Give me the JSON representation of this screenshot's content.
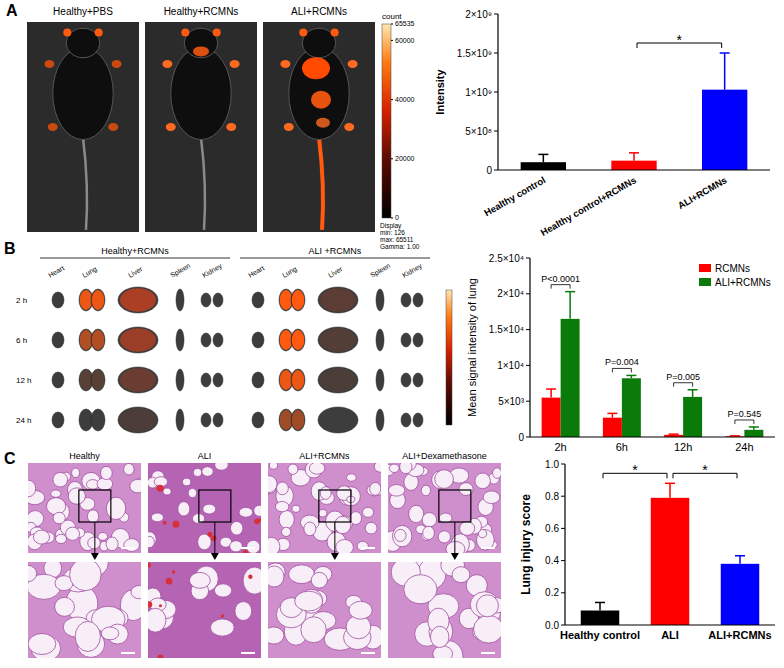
{
  "figure": {
    "panel_labels": [
      "A",
      "B",
      "C"
    ],
    "imaging": {
      "titles": [
        "Healthy+PBS",
        "Healthy+RCMNs",
        "ALI+RCMNs"
      ],
      "colorbar": {
        "title": "count",
        "range": [
          0,
          65535
        ],
        "ticks": [
          0,
          20000,
          40000,
          60000,
          65535
        ],
        "display": [
          "Display",
          "min: 126",
          "max: 65511",
          "Gamma: 1.00"
        ]
      }
    },
    "organs": {
      "groups": [
        "Healthy+RCMNs",
        "ALI +RCMNs"
      ],
      "organ_names": [
        "Heart",
        "Lung",
        "Liver",
        "Spleen",
        "Kidney"
      ],
      "times": [
        "2 h",
        "6 h",
        "12 h",
        "24 h"
      ]
    },
    "histology": {
      "titles": [
        "Healthy",
        "ALI",
        "ALI+RCMNs",
        "ALI+Dexamethasone"
      ]
    }
  },
  "chart_data": [
    {
      "type": "bar",
      "ylabel": "Intensity",
      "categories": [
        "Healthy control",
        "Healthy control+RCMNs",
        "ALI+RCMNs"
      ],
      "values": [
        100000000,
        120000000,
        1030000000
      ],
      "errors": [
        100000000,
        100000000,
        470000000
      ],
      "colors": [
        "#000000",
        "#ff0000",
        "#0000ff"
      ],
      "ylim": [
        0,
        2000000000
      ],
      "yticks": [
        0,
        {
          "value": 500000000,
          "label": "5×10⁸"
        },
        {
          "value": 1000000000,
          "label": "1×10⁹"
        },
        {
          "value": 1500000000,
          "label": "1.5×10⁹"
        },
        {
          "value": 2000000000,
          "label": "2×10⁹"
        }
      ],
      "annotations": [
        {
          "text": "*",
          "between": [
            "Healthy control+RCMNs",
            "ALI+RCMNs"
          ]
        }
      ]
    },
    {
      "type": "bar",
      "ylabel": "Mean signal intensity of lung",
      "categories": [
        "2h",
        "6h",
        "12h",
        "24h"
      ],
      "series": [
        {
          "name": "RCMNs",
          "color": "#ff0000",
          "values": [
            5500,
            2700,
            300,
            100
          ],
          "errors": [
            1200,
            600,
            100,
            60
          ]
        },
        {
          "name": "ALI+RCMNs",
          "color": "#0a7a0a",
          "values": [
            16500,
            8200,
            5600,
            1000
          ],
          "errors": [
            3800,
            400,
            1000,
            400
          ]
        }
      ],
      "ylim": [
        0,
        25000
      ],
      "yticks": [
        0,
        {
          "value": 5000,
          "label": "5×10³"
        },
        {
          "value": 10000,
          "label": "1×10⁴"
        },
        {
          "value": 15000,
          "label": "1.5×10⁴"
        },
        {
          "value": 20000,
          "label": "2×10⁴"
        },
        {
          "value": 25000,
          "label": "2.5×10⁴"
        }
      ],
      "annotations": [
        "P<0.0001",
        "P=0.004",
        "P=0.005",
        "P=0.545"
      ],
      "legend": "upper right"
    },
    {
      "type": "bar",
      "ylabel": "Lung injury score",
      "categories": [
        "Healthy control",
        "ALI",
        "ALI+RCMNs"
      ],
      "values": [
        0.09,
        0.79,
        0.38
      ],
      "errors": [
        0.05,
        0.09,
        0.05
      ],
      "colors": [
        "#000000",
        "#ff0000",
        "#0000ff"
      ],
      "ylim": [
        0,
        1
      ],
      "yticks": [
        {
          "value": 0,
          "label": "0.0"
        },
        0.2,
        0.4,
        0.6,
        0.8,
        {
          "value": 1,
          "label": "1.0"
        }
      ],
      "annotations": [
        {
          "text": "*",
          "between": [
            "Healthy control",
            "ALI"
          ]
        },
        {
          "text": "*",
          "between": [
            "ALI",
            "ALI+RCMNs"
          ]
        }
      ]
    }
  ]
}
